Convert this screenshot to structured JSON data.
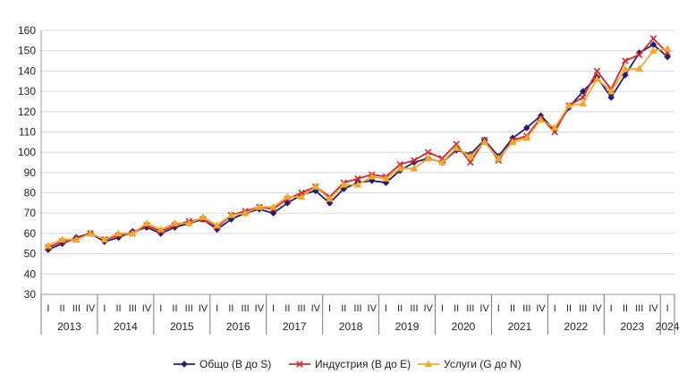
{
  "chart_data": {
    "type": "line",
    "title": "",
    "xlabel": "",
    "ylabel": "",
    "ylim": [
      30,
      160
    ],
    "yticks": [
      30,
      40,
      50,
      60,
      70,
      80,
      90,
      100,
      110,
      120,
      130,
      140,
      150,
      160
    ],
    "grid": "horizontal",
    "legend_position": "bottom",
    "quarter_labels": [
      "I",
      "II",
      "III",
      "IV"
    ],
    "years": [
      "2013",
      "2014",
      "2015",
      "2016",
      "2017",
      "2018",
      "2019",
      "2020",
      "2021",
      "2022",
      "2023",
      "2024"
    ],
    "x": [
      "2013 I",
      "2013 II",
      "2013 III",
      "2013 IV",
      "2014 I",
      "2014 II",
      "2014 III",
      "2014 IV",
      "2015 I",
      "2015 II",
      "2015 III",
      "2015 IV",
      "2016 I",
      "2016 II",
      "2016 III",
      "2016 IV",
      "2017 I",
      "2017 II",
      "2017 III",
      "2017 IV",
      "2018 I",
      "2018 II",
      "2018 III",
      "2018 IV",
      "2019 I",
      "2019 II",
      "2019 III",
      "2019 IV",
      "2020 I",
      "2020 II",
      "2020 III",
      "2020 IV",
      "2021 I",
      "2021 II",
      "2021 III",
      "2021 IV",
      "2022 I",
      "2022 II",
      "2022 III",
      "2022 IV",
      "2023 I",
      "2023 II",
      "2023 III",
      "2023 IV",
      "2024 I"
    ],
    "series": [
      {
        "name": "Общо (B до S)",
        "color": "#1f1f7a",
        "marker": "diamond",
        "values": [
          52,
          55,
          58,
          60,
          56,
          58,
          61,
          63,
          60,
          63,
          65,
          67,
          62,
          67,
          70,
          72,
          70,
          75,
          79,
          81,
          75,
          82,
          85,
          86,
          85,
          91,
          95,
          97,
          95,
          101,
          99,
          106,
          98,
          107,
          112,
          118,
          111,
          122,
          130,
          137,
          127,
          138,
          149,
          153,
          147
        ]
      },
      {
        "name": "Индустрия (B до E)",
        "color": "#d62728",
        "marker": "x",
        "values": [
          53,
          56,
          57,
          60,
          57,
          59,
          60,
          64,
          61,
          64,
          66,
          67,
          63,
          69,
          71,
          73,
          72,
          77,
          80,
          83,
          78,
          85,
          87,
          89,
          88,
          94,
          96,
          100,
          97,
          104,
          95,
          106,
          96,
          106,
          108,
          117,
          110,
          123,
          127,
          140,
          131,
          145,
          148,
          156,
          149
        ]
      },
      {
        "name": "Услуги (G до N)",
        "color": "#f5a623",
        "marker": "triangle",
        "values": [
          54,
          57,
          57,
          60,
          57,
          60,
          60,
          65,
          62,
          65,
          65,
          68,
          64,
          69,
          70,
          73,
          73,
          78,
          78,
          83,
          77,
          84,
          84,
          88,
          87,
          92,
          92,
          97,
          95,
          102,
          98,
          105,
          97,
          105,
          107,
          116,
          112,
          123,
          124,
          136,
          130,
          141,
          141,
          150,
          151
        ]
      }
    ]
  }
}
